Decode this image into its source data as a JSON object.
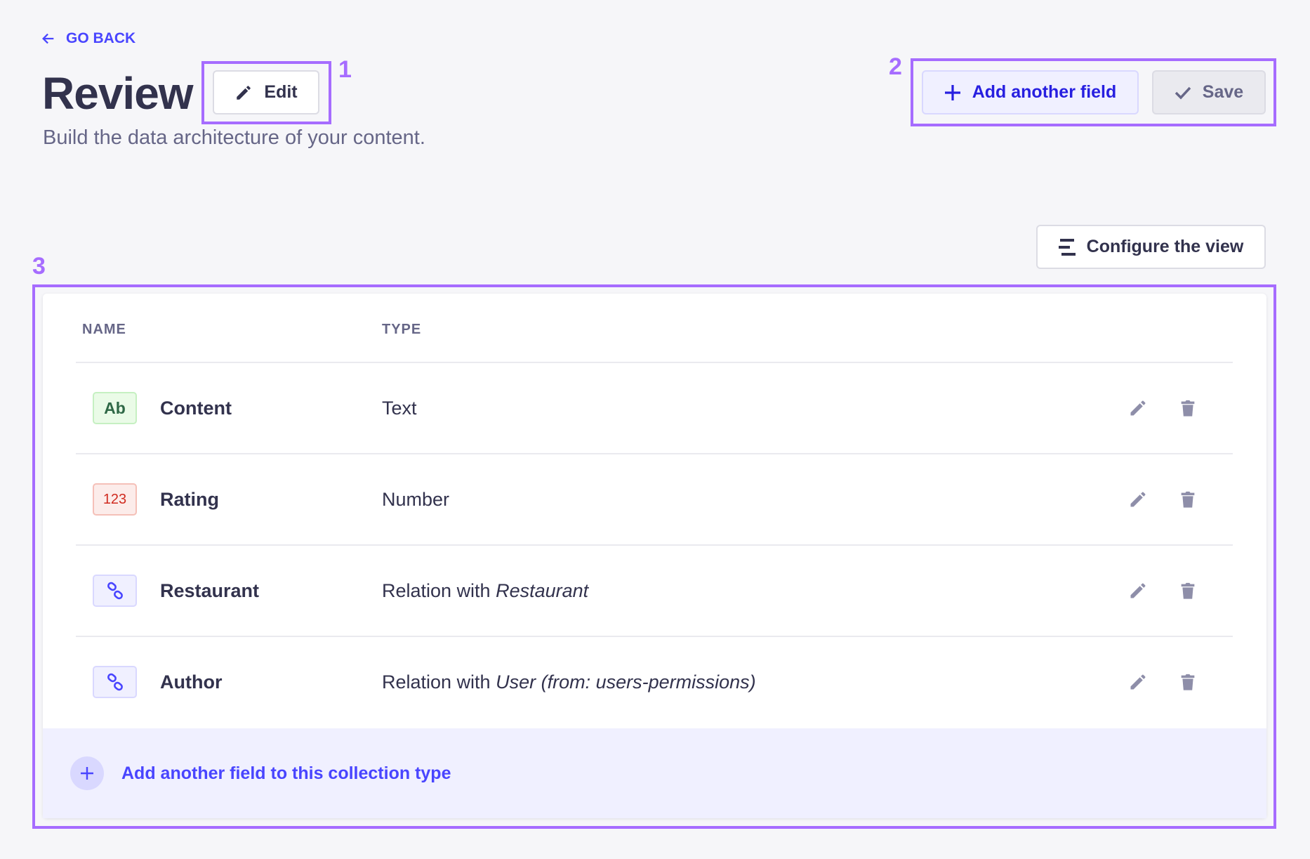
{
  "header": {
    "go_back_label": "GO BACK",
    "title": "Review",
    "subtitle": "Build the data architecture of your content.",
    "edit_label": "Edit",
    "add_field_label": "Add another field",
    "save_label": "Save",
    "configure_view_label": "Configure the view"
  },
  "annotations": [
    "1",
    "2",
    "3"
  ],
  "table": {
    "columns": [
      "NAME",
      "TYPE"
    ],
    "rows": [
      {
        "badge": "Ab",
        "badge_kind": "text",
        "name": "Content",
        "type_prefix": "Text",
        "type_target": ""
      },
      {
        "badge": "123",
        "badge_kind": "number",
        "name": "Rating",
        "type_prefix": "Number",
        "type_target": ""
      },
      {
        "badge": "",
        "badge_kind": "relation",
        "name": "Restaurant",
        "type_prefix": "Relation with ",
        "type_target": "Restaurant"
      },
      {
        "badge": "",
        "badge_kind": "relation",
        "name": "Author",
        "type_prefix": "Relation with ",
        "type_target": "User (from: users-permissions)"
      }
    ],
    "footer_label": "Add another field to this collection type"
  },
  "colors": {
    "primary": "#4945ff",
    "annotation": "#a66cff",
    "text_badge": "#2f6846",
    "number_badge": "#d02b20"
  }
}
